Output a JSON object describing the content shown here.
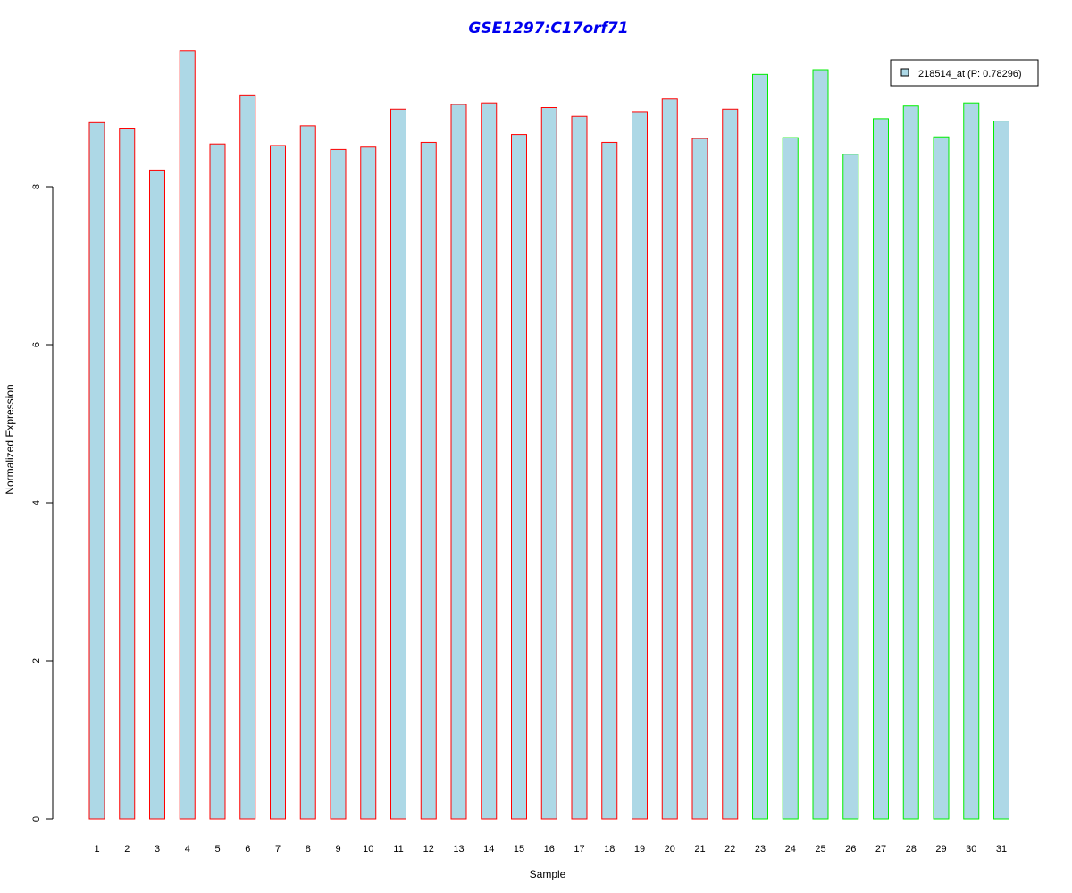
{
  "chart_data": {
    "type": "bar",
    "title": "GSE1297:C17orf71",
    "xlabel": "Sample",
    "ylabel": "Normalized Expression",
    "ylim": [
      0,
      9.8
    ],
    "yticks": [
      0,
      2,
      4,
      6,
      8
    ],
    "categories": [
      "1",
      "2",
      "3",
      "4",
      "5",
      "6",
      "7",
      "8",
      "9",
      "10",
      "11",
      "12",
      "13",
      "14",
      "15",
      "16",
      "17",
      "18",
      "19",
      "20",
      "21",
      "22",
      "23",
      "24",
      "25",
      "26",
      "27",
      "28",
      "29",
      "30",
      "31"
    ],
    "values": [
      8.81,
      8.74,
      8.21,
      9.72,
      8.54,
      9.16,
      8.52,
      8.77,
      8.47,
      8.5,
      8.98,
      8.56,
      9.04,
      9.06,
      8.66,
      9.0,
      8.89,
      8.56,
      8.95,
      9.11,
      8.61,
      8.98,
      9.42,
      8.62,
      9.48,
      8.41,
      8.86,
      9.02,
      8.63,
      9.06,
      8.83
    ],
    "groups": [
      "red",
      "red",
      "red",
      "red",
      "red",
      "red",
      "red",
      "red",
      "red",
      "red",
      "red",
      "red",
      "red",
      "red",
      "red",
      "red",
      "red",
      "red",
      "red",
      "red",
      "red",
      "red",
      "green",
      "green",
      "green",
      "green",
      "green",
      "green",
      "green",
      "green",
      "green"
    ],
    "colors": {
      "fill": "#add8e6",
      "red": "#ff0000",
      "green": "#00ee00",
      "title": "#0000ee"
    },
    "legend": {
      "label": "218514_at (P: 0.78296)",
      "position": "top-right"
    }
  }
}
